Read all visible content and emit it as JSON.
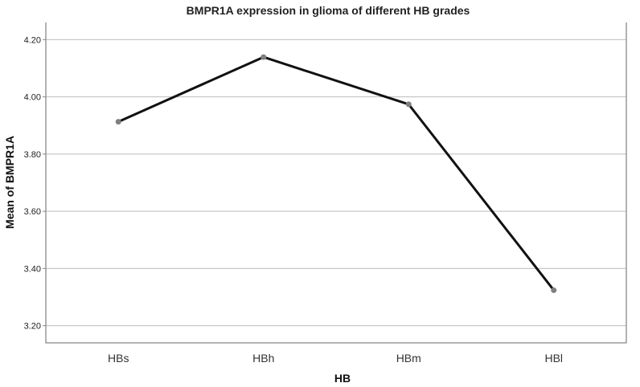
{
  "chart_data": {
    "type": "line",
    "title": "BMPR1A expression in glioma of different HB grades",
    "xlabel": "HB",
    "ylabel": "Mean of BMPR1A",
    "categories": [
      "HBs",
      "HBh",
      "HBm",
      "HBl"
    ],
    "series": [
      {
        "values": [
          3.913,
          4.139,
          3.974,
          3.324
        ]
      }
    ],
    "ylim": [
      3.14,
      4.26
    ],
    "yticks": [
      3.2,
      3.4,
      3.6,
      3.8,
      4.0,
      4.2
    ],
    "ytick_labels": [
      "3.20",
      "3.40",
      "3.60",
      "3.80",
      "4.00",
      "4.20"
    ],
    "grid": "horizontal",
    "line_color": "#111111",
    "marker_color": "#7f7f7f"
  }
}
